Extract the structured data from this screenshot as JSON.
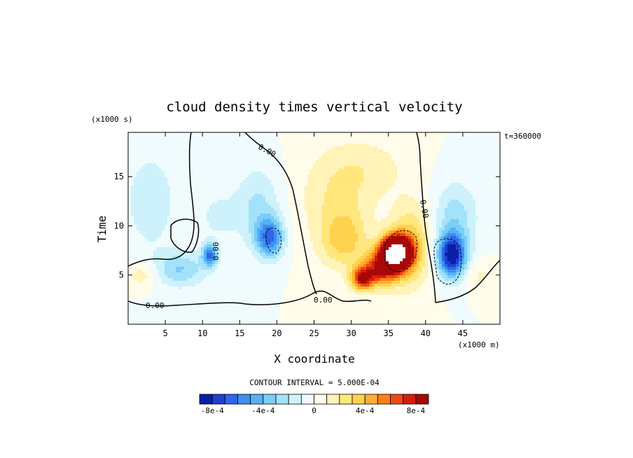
{
  "chart_data": {
    "type": "heatmap",
    "title": "cloud density times vertical velocity",
    "xlabel": "X coordinate",
    "ylabel": "Time",
    "x_units": "(x1000 m)",
    "y_units": "(x1000 s)",
    "time_stamp": "t=360000",
    "xlim": [
      0,
      50
    ],
    "ylim": [
      0,
      19.5
    ],
    "x_ticks": [
      5,
      10,
      15,
      20,
      25,
      30,
      35,
      40,
      45
    ],
    "x_tick_labels": [
      "5",
      "10",
      "15",
      "20",
      "25",
      "30",
      "35",
      "40",
      "45"
    ],
    "y_ticks": [
      5,
      10,
      15
    ],
    "y_tick_labels": [
      "5",
      "10",
      "15"
    ],
    "contour_interval_text": "CONTOUR INTERVAL = 5.000E-04",
    "contour_label": "0.00",
    "colorbar": {
      "colors": [
        "#0a1fa8",
        "#1f3fd0",
        "#2f66e8",
        "#3d8ff2",
        "#55b1f6",
        "#79cdf8",
        "#a3e2fa",
        "#cdf2fb",
        "#effbfd",
        "#fffcea",
        "#fff3b8",
        "#ffe77e",
        "#ffd24e",
        "#ffae2e",
        "#ff8018",
        "#f04a10",
        "#d41e0c",
        "#a80808"
      ],
      "tick_labels": [
        "-8e-4",
        "-4e-4",
        "0",
        "4e-4",
        "8e-4"
      ],
      "tick_values": [
        -0.0008,
        -0.0004,
        0,
        0.0004,
        0.0008
      ],
      "range": [
        -0.0009,
        0.0009
      ]
    },
    "features": [
      {
        "x": 36,
        "y": 7.3,
        "sx": 2.0,
        "sy": 1.6,
        "v": 0.0017
      },
      {
        "x": 34,
        "y": 5.6,
        "sx": 2.6,
        "sy": 1.7,
        "v": 0.0007
      },
      {
        "x": 31.5,
        "y": 4.6,
        "sx": 1.5,
        "sy": 1.1,
        "v": 0.0007
      },
      {
        "x": 29,
        "y": 8.5,
        "sx": 3.2,
        "sy": 2.8,
        "v": 0.0003
      },
      {
        "x": 28,
        "y": 13,
        "sx": 5,
        "sy": 5,
        "v": 0.0002
      },
      {
        "x": 38,
        "y": 8,
        "sx": 2.8,
        "sy": 4.2,
        "v": 0.00035
      },
      {
        "x": 33,
        "y": 16,
        "sx": 5,
        "sy": 3,
        "v": 0.00012
      },
      {
        "x": 43.5,
        "y": 7,
        "sx": 1.9,
        "sy": 2.2,
        "v": -0.0009
      },
      {
        "x": 44,
        "y": 11,
        "sx": 3,
        "sy": 3.5,
        "v": -0.00025
      },
      {
        "x": 19,
        "y": 8.8,
        "sx": 1.8,
        "sy": 2.0,
        "v": -0.0006
      },
      {
        "x": 17.5,
        "y": 12,
        "sx": 3,
        "sy": 4,
        "v": -0.00022
      },
      {
        "x": 11,
        "y": 7,
        "sx": 1.0,
        "sy": 1.1,
        "v": -0.0006
      },
      {
        "x": 7,
        "y": 5.6,
        "sx": 3.5,
        "sy": 1.8,
        "v": -0.0003
      },
      {
        "x": 3,
        "y": 12.5,
        "sx": 3.5,
        "sy": 5,
        "v": -0.00018
      },
      {
        "x": 12,
        "y": 11,
        "sx": 3,
        "sy": 3,
        "v": -0.00012
      },
      {
        "x": 2,
        "y": 5,
        "sx": 2,
        "sy": 1.3,
        "v": 0.00018
      },
      {
        "x": 47,
        "y": 5,
        "sx": 2,
        "sy": 1.5,
        "v": 0.00012
      }
    ]
  }
}
